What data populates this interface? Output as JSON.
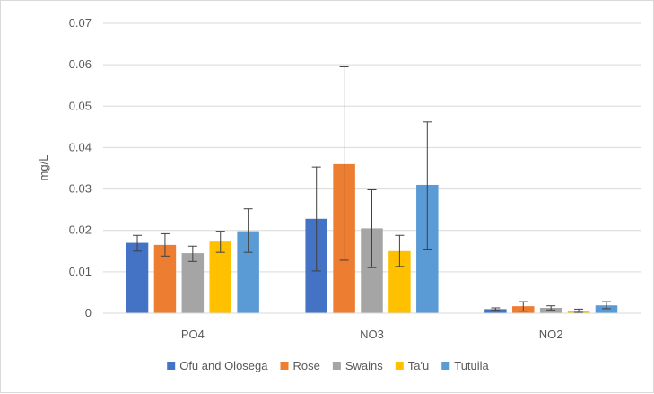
{
  "chart_data": {
    "type": "bar",
    "title": "",
    "xlabel": "",
    "ylabel": "mg/L",
    "ylim": [
      0,
      0.07
    ],
    "yticks": [
      "0",
      "0.01",
      "0.02",
      "0.03",
      "0.04",
      "0.05",
      "0.06",
      "0.07"
    ],
    "grid": true,
    "legend_position": "bottom",
    "categories": [
      "PO4",
      "NO3",
      "NO2"
    ],
    "series": [
      {
        "name": "Ofu and Olosega",
        "color": "#4472c4",
        "values": [
          0.017,
          0.0228,
          0.001
        ],
        "error_low": [
          0.015,
          0.0102,
          0.0007
        ],
        "error_high": [
          0.0188,
          0.0353,
          0.0013
        ]
      },
      {
        "name": "Rose",
        "color": "#ed7d31",
        "values": [
          0.0165,
          0.036,
          0.0017
        ],
        "error_low": [
          0.0138,
          0.0128,
          0.0005
        ],
        "error_high": [
          0.0192,
          0.0595,
          0.0028
        ]
      },
      {
        "name": "Swains",
        "color": "#a5a5a5",
        "values": [
          0.0145,
          0.0205,
          0.0013
        ],
        "error_low": [
          0.0125,
          0.011,
          0.0008
        ],
        "error_high": [
          0.0162,
          0.0298,
          0.0018
        ]
      },
      {
        "name": "Ta'u",
        "color": "#ffc000",
        "values": [
          0.0173,
          0.015,
          0.0006
        ],
        "error_low": [
          0.0147,
          0.0113,
          0.0002
        ],
        "error_high": [
          0.0198,
          0.0188,
          0.001
        ]
      },
      {
        "name": "Tutuila",
        "color": "#5b9bd5",
        "values": [
          0.0198,
          0.031,
          0.0019
        ],
        "error_low": [
          0.0147,
          0.0155,
          0.0011
        ],
        "error_high": [
          0.0252,
          0.0462,
          0.0028
        ]
      }
    ]
  }
}
